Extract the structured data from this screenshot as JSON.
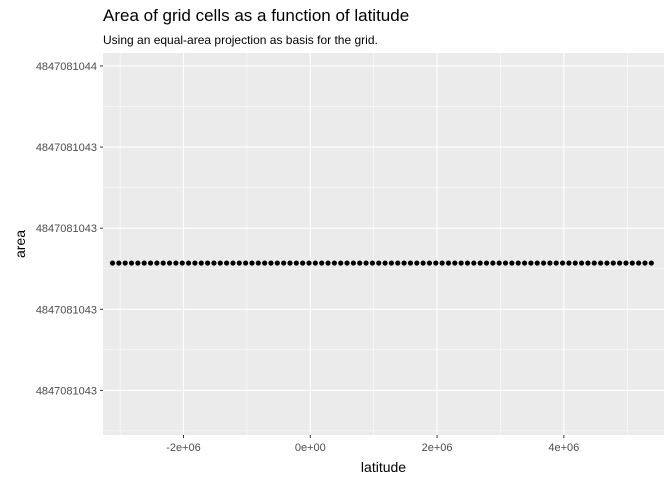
{
  "chart_data": {
    "type": "scatter",
    "title": "Area of grid cells as a function of latitude",
    "subtitle": "Using an equal-area projection as basis for the grid.",
    "xlabel": "latitude",
    "ylabel": "area",
    "x_ticks": [
      {
        "value": -2000000,
        "label": "-2e+06"
      },
      {
        "value": 0,
        "label": "0e+00"
      },
      {
        "value": 2000000,
        "label": "2e+06"
      },
      {
        "value": 4000000,
        "label": "4e+06"
      }
    ],
    "y_ticks": [
      {
        "value": 0.0,
        "label": "4847081043"
      },
      {
        "value": 1.0,
        "label": "4847081043"
      },
      {
        "value": 2.0,
        "label": "4847081043"
      },
      {
        "value": 3.0,
        "label": "4847081043"
      },
      {
        "value": 4.0,
        "label": "4847081044"
      }
    ],
    "y_tick_note": "y tick values are relative positions of the printed labels (labels are rounded)",
    "xlim": [
      -3270000,
      5580000
    ],
    "ylim": [
      -0.55,
      4.16
    ],
    "x_start": -3120000,
    "x_end": 5420000,
    "x_step": 100000,
    "y_constant": 1.57,
    "point_color": "#000000",
    "panel_background": "#ebebeb",
    "grid": true,
    "legend": "none"
  }
}
